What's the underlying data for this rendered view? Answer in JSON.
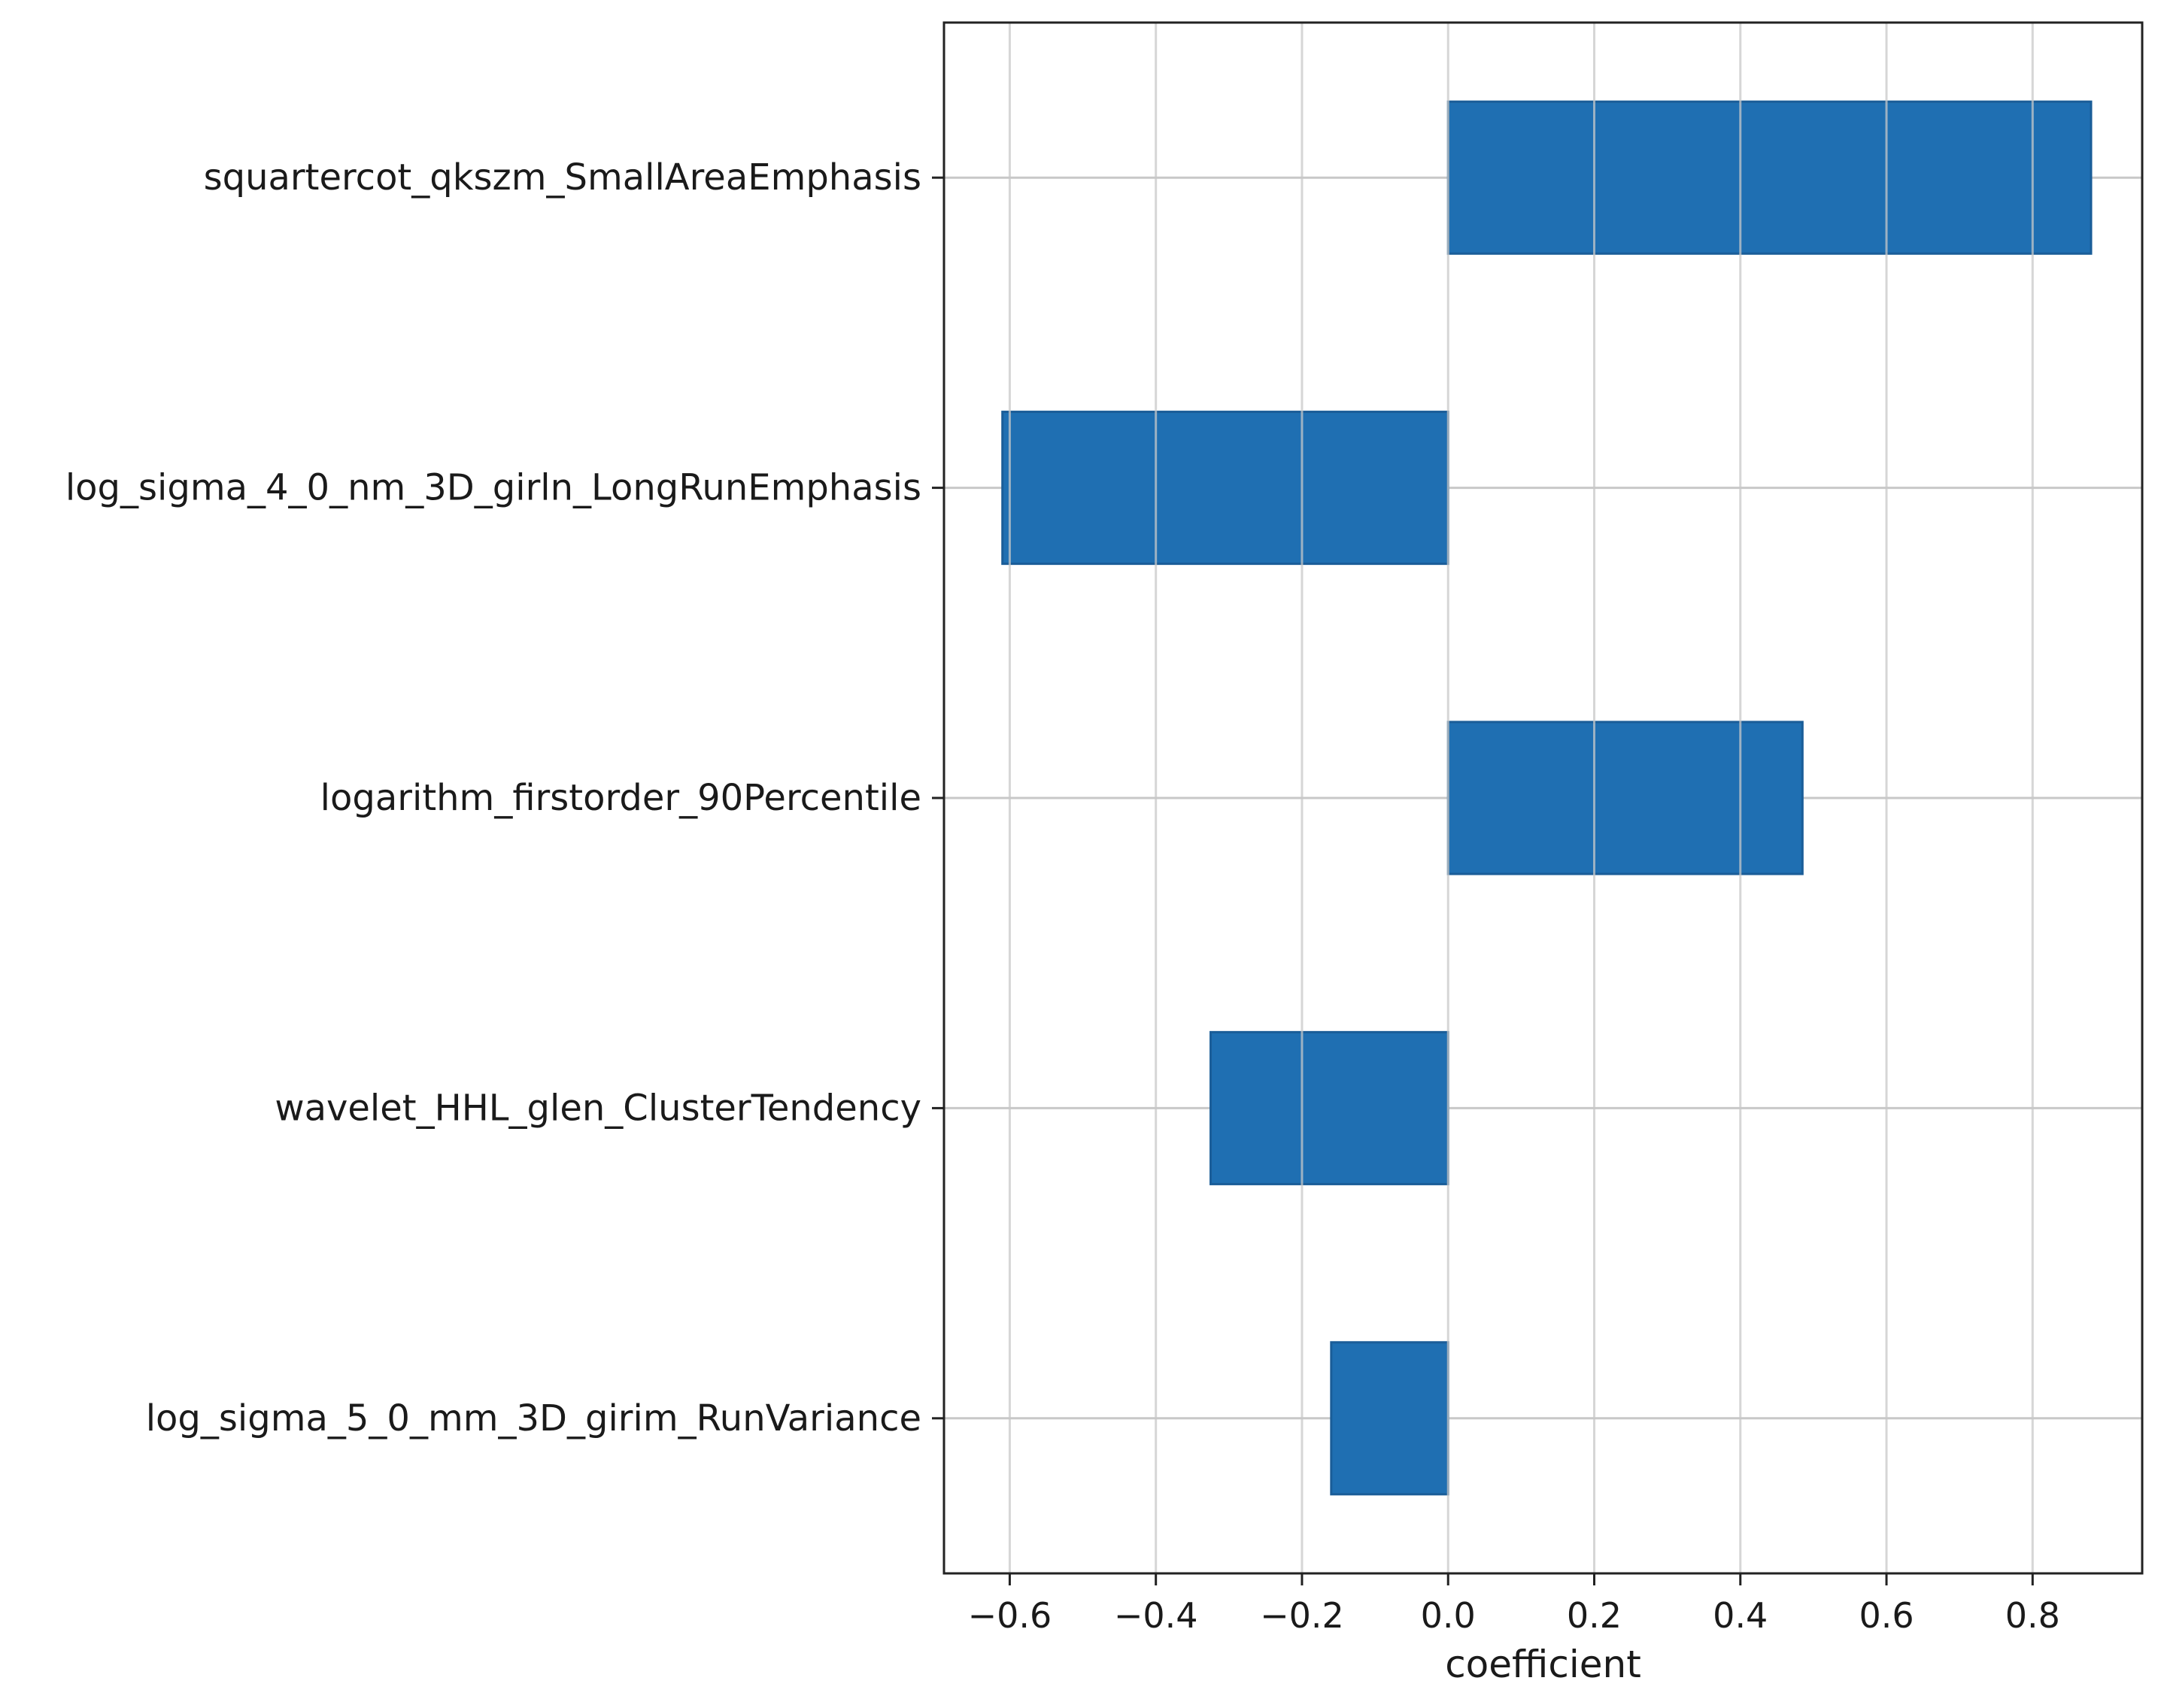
{
  "chart_data": {
    "type": "bar",
    "orientation": "horizontal",
    "categories": [
      "squartercot_qkszm_SmallAreaEmphasis",
      "log_sigma_4_0_nm_3D_girln_LongRunEmphasis",
      "logarithm_firstorder_90Percentile",
      "wavelet_HHL_glen_ClusterTendency",
      "log_sigma_5_0_mm_3D_girim_RunVariance"
    ],
    "values": [
      0.88,
      -0.61,
      0.485,
      -0.325,
      -0.16
    ],
    "xlabel": "coefficient",
    "ylabel": "",
    "xlim": [
      -0.69,
      0.95
    ],
    "xticks": [
      -0.6,
      -0.4,
      -0.2,
      0.0,
      0.2,
      0.4,
      0.6,
      0.8
    ],
    "xtick_labels": [
      "−0.6",
      "−0.4",
      "−0.2",
      "0.0",
      "0.2",
      "0.4",
      "0.6",
      "0.8"
    ],
    "grid": true,
    "bar_color": "#1f6fb2",
    "bar_edge_color": "#1a5d98",
    "grid_color": "#c8c8c8"
  }
}
